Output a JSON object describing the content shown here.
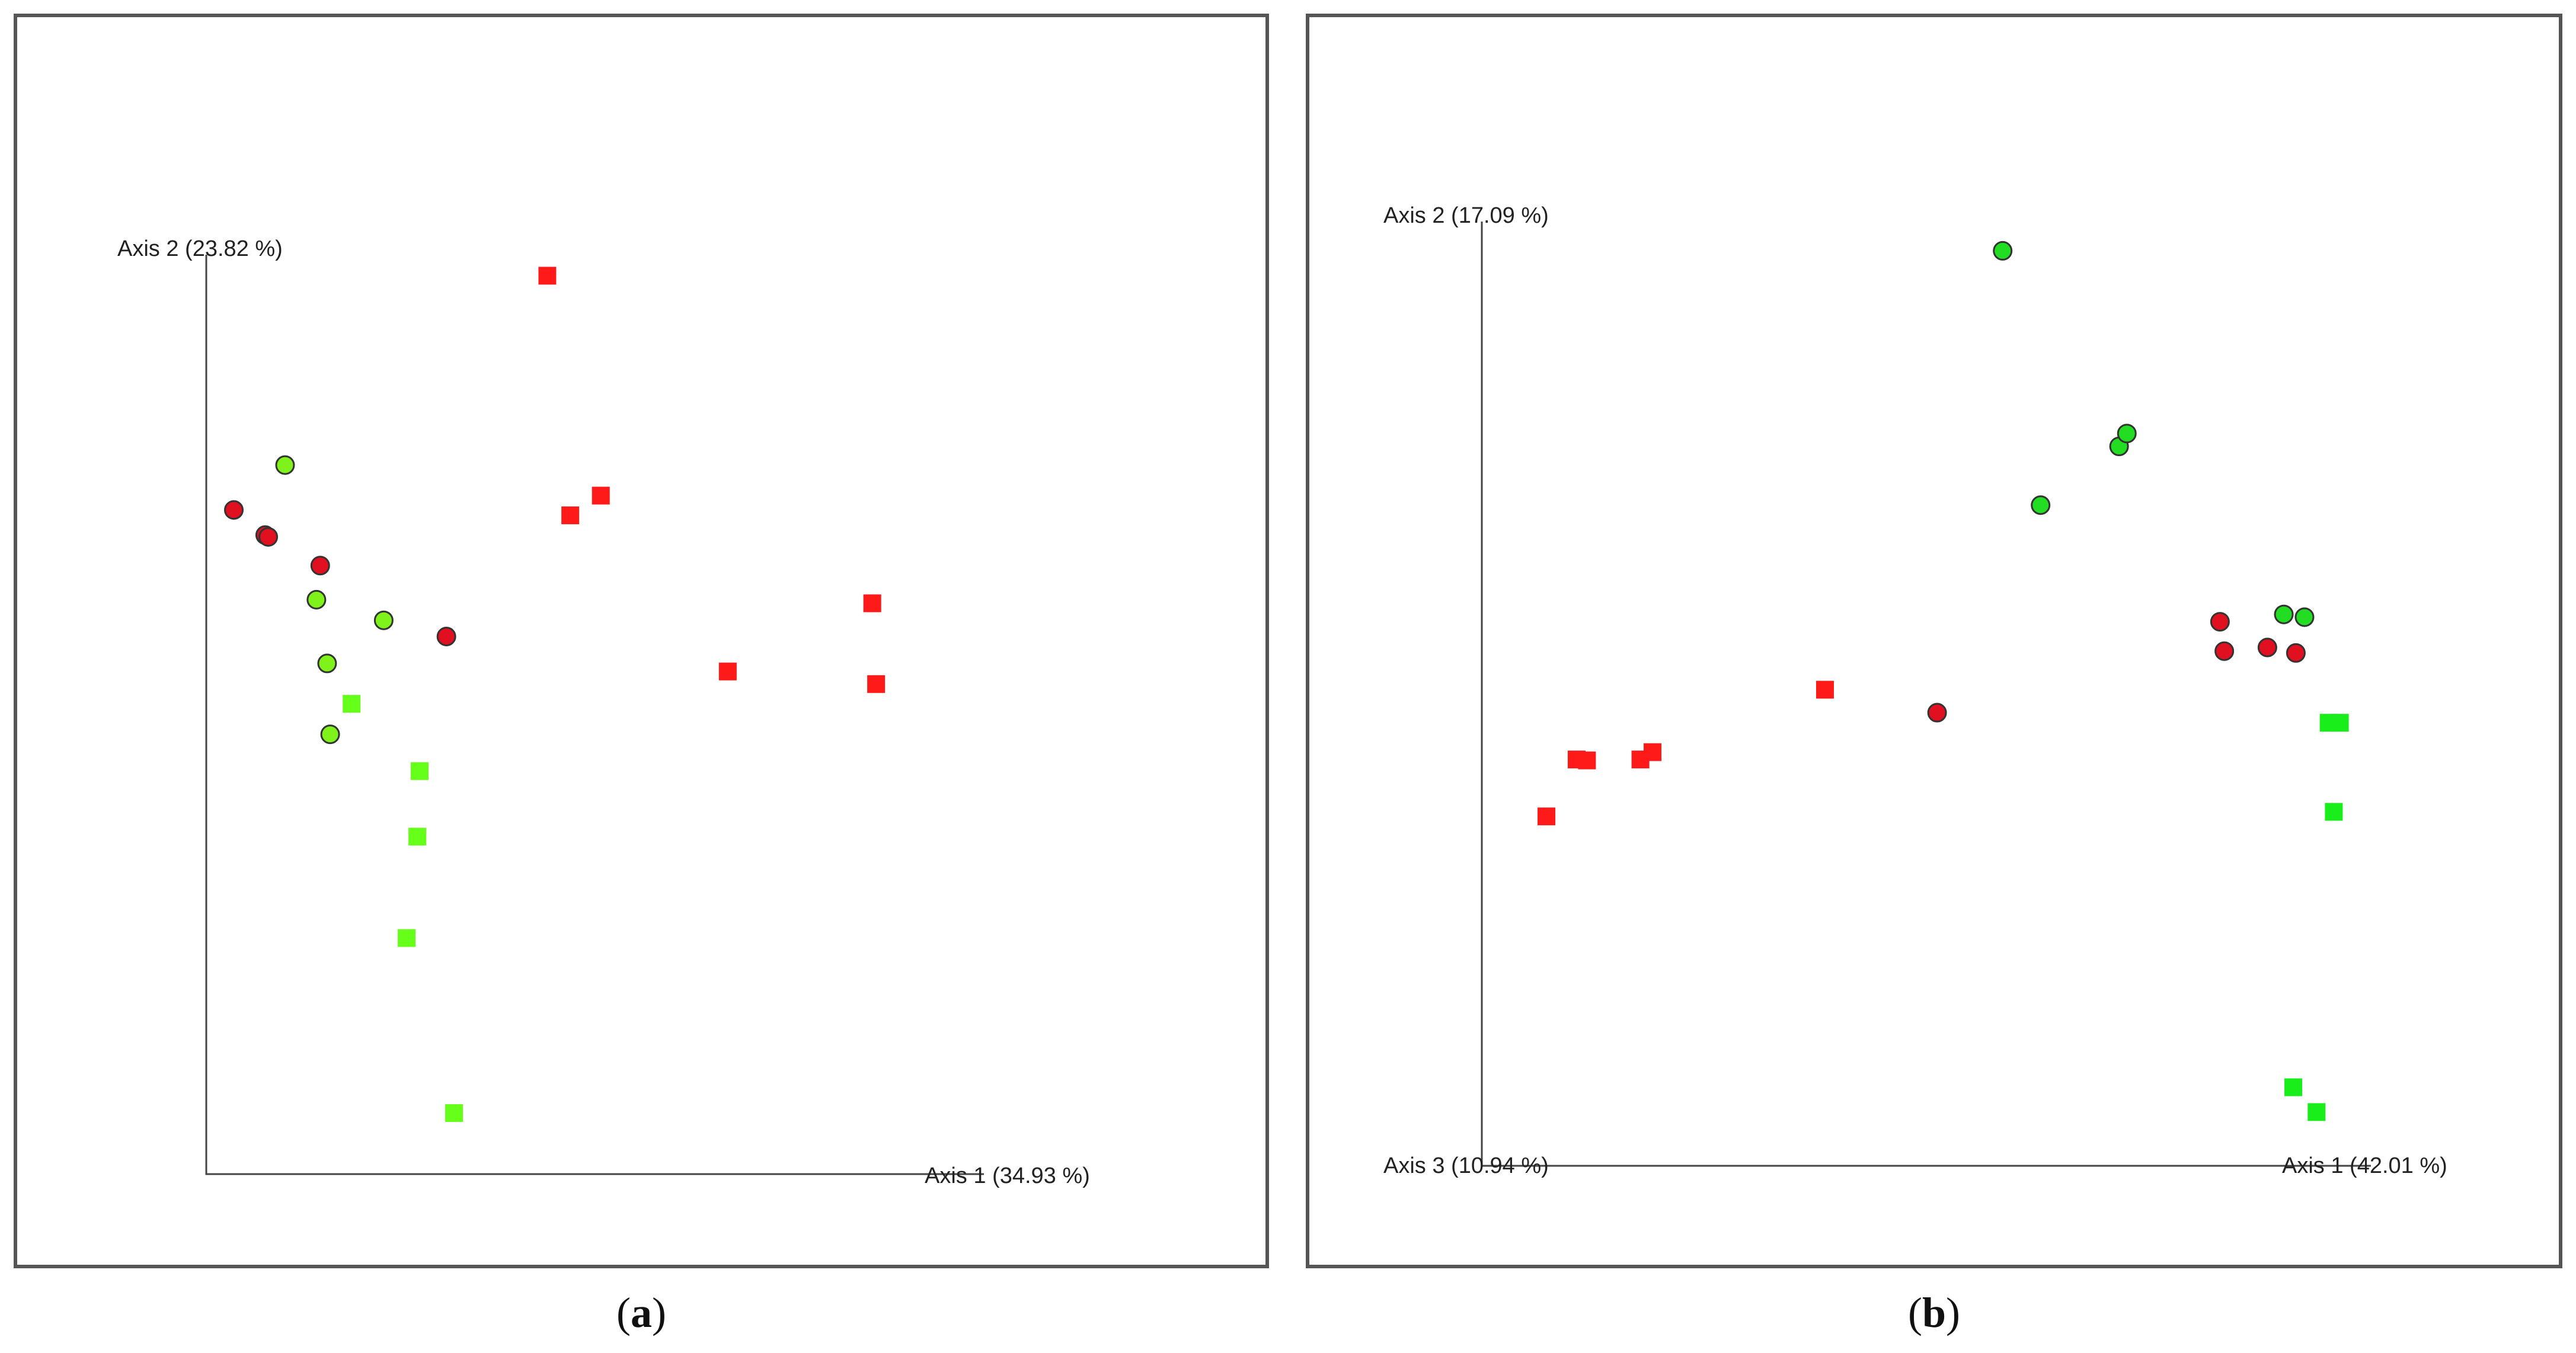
{
  "colors": {
    "red_square": "#ff1a1a",
    "green_square": "#66ff1a",
    "green_square_b": "#1aee1a",
    "red_circle": "#e01020",
    "green_circle": "#7ef21a",
    "green_circle_b": "#22dd22",
    "frame": "#555555",
    "axis": "#444444"
  },
  "chart_data": [
    {
      "type": "scatter",
      "panel_label": "a",
      "axes": [
        "Axis 1 (34.93 %)",
        "Axis 2 (23.82 %)"
      ],
      "xlim": [
        0,
        100
      ],
      "ylim": [
        0,
        100
      ],
      "grid": false,
      "series": [
        {
          "marker": "square",
          "color": "red_square",
          "points": [
            [
              42.9,
              97.0
            ],
            [
              45.9,
              70.3
            ],
            [
              49.9,
              72.5
            ],
            [
              66.5,
              52.9
            ],
            [
              85.4,
              60.5
            ],
            [
              85.9,
              51.5
            ]
          ]
        },
        {
          "marker": "square",
          "color": "green_square",
          "points": [
            [
              17.3,
              49.3
            ],
            [
              26.2,
              41.8
            ],
            [
              25.9,
              34.5
            ],
            [
              24.5,
              23.2
            ],
            [
              30.7,
              3.7
            ]
          ]
        },
        {
          "marker": "circle",
          "color": "red_circle",
          "points": [
            [
              1.9,
              70.9
            ],
            [
              6.0,
              68.1
            ],
            [
              6.4,
              67.9
            ],
            [
              13.2,
              64.7
            ],
            [
              29.7,
              56.8
            ]
          ]
        },
        {
          "marker": "circle",
          "color": "green_circle",
          "points": [
            [
              8.6,
              75.9
            ],
            [
              12.7,
              60.9
            ],
            [
              21.5,
              58.6
            ],
            [
              14.1,
              53.8
            ],
            [
              14.5,
              45.9
            ]
          ]
        }
      ]
    },
    {
      "type": "scatter",
      "panel_label": "b",
      "axes": [
        "Axis 1 (42.01 %)",
        "Axis 2 (17.09 %)",
        "Axis 3 (10.94 %)"
      ],
      "xlim": [
        0,
        100
      ],
      "ylim": [
        0,
        100
      ],
      "grid": false,
      "series": [
        {
          "marker": "square",
          "color": "red_square",
          "points": [
            [
              4.4,
              35.6
            ],
            [
              7.9,
              41.8
            ],
            [
              9.1,
              41.7
            ],
            [
              15.3,
              41.8
            ],
            [
              16.7,
              42.6
            ],
            [
              36.7,
              49.4
            ]
          ]
        },
        {
          "marker": "square",
          "color": "green_square_b",
          "points": [
            [
              95.1,
              45.8
            ],
            [
              96.4,
              45.8
            ],
            [
              95.7,
              36.1
            ],
            [
              91.0,
              6.1
            ],
            [
              93.7,
              3.4
            ]
          ]
        },
        {
          "marker": "circle",
          "color": "red_circle",
          "points": [
            [
              49.7,
              46.9
            ],
            [
              82.5,
              56.8
            ],
            [
              83.0,
              53.6
            ],
            [
              88.0,
              54.0
            ],
            [
              91.3,
              53.4
            ]
          ]
        },
        {
          "marker": "circle",
          "color": "green_circle_b",
          "points": [
            [
              57.3,
              97.2
            ],
            [
              61.7,
              69.5
            ],
            [
              70.8,
              75.9
            ],
            [
              71.7,
              77.3
            ],
            [
              89.9,
              57.6
            ],
            [
              92.3,
              57.3
            ]
          ]
        }
      ]
    }
  ]
}
